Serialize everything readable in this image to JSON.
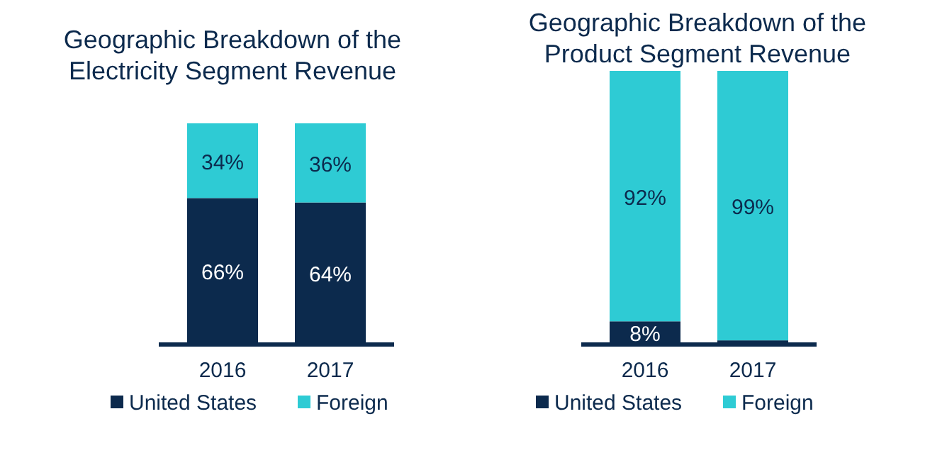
{
  "chart_data": [
    {
      "type": "bar",
      "stacked": true,
      "title": "Geographic Breakdown of the Electricity Segment Revenue",
      "categories": [
        "2016",
        "2017"
      ],
      "legend": "bottom",
      "series": [
        {
          "name": "United States",
          "color": "#0c2a4d",
          "values": [
            66,
            64
          ],
          "value_labels": [
            "66%",
            "64%"
          ]
        },
        {
          "name": "Foreign",
          "color": "#2ecbd4",
          "values": [
            34,
            36
          ],
          "value_labels": [
            "34%",
            "36%"
          ]
        }
      ]
    },
    {
      "type": "bar",
      "stacked": true,
      "title": "Geographic Breakdown of the Product Segment Revenue",
      "categories": [
        "2016",
        "2017"
      ],
      "legend": "bottom",
      "series": [
        {
          "name": "United States",
          "color": "#0c2a4d",
          "values": [
            8,
            1
          ],
          "value_labels": [
            "8%",
            null
          ]
        },
        {
          "name": "Foreign",
          "color": "#2ecbd4",
          "values": [
            92,
            99
          ],
          "value_labels": [
            "92%",
            "99%"
          ]
        }
      ]
    }
  ]
}
